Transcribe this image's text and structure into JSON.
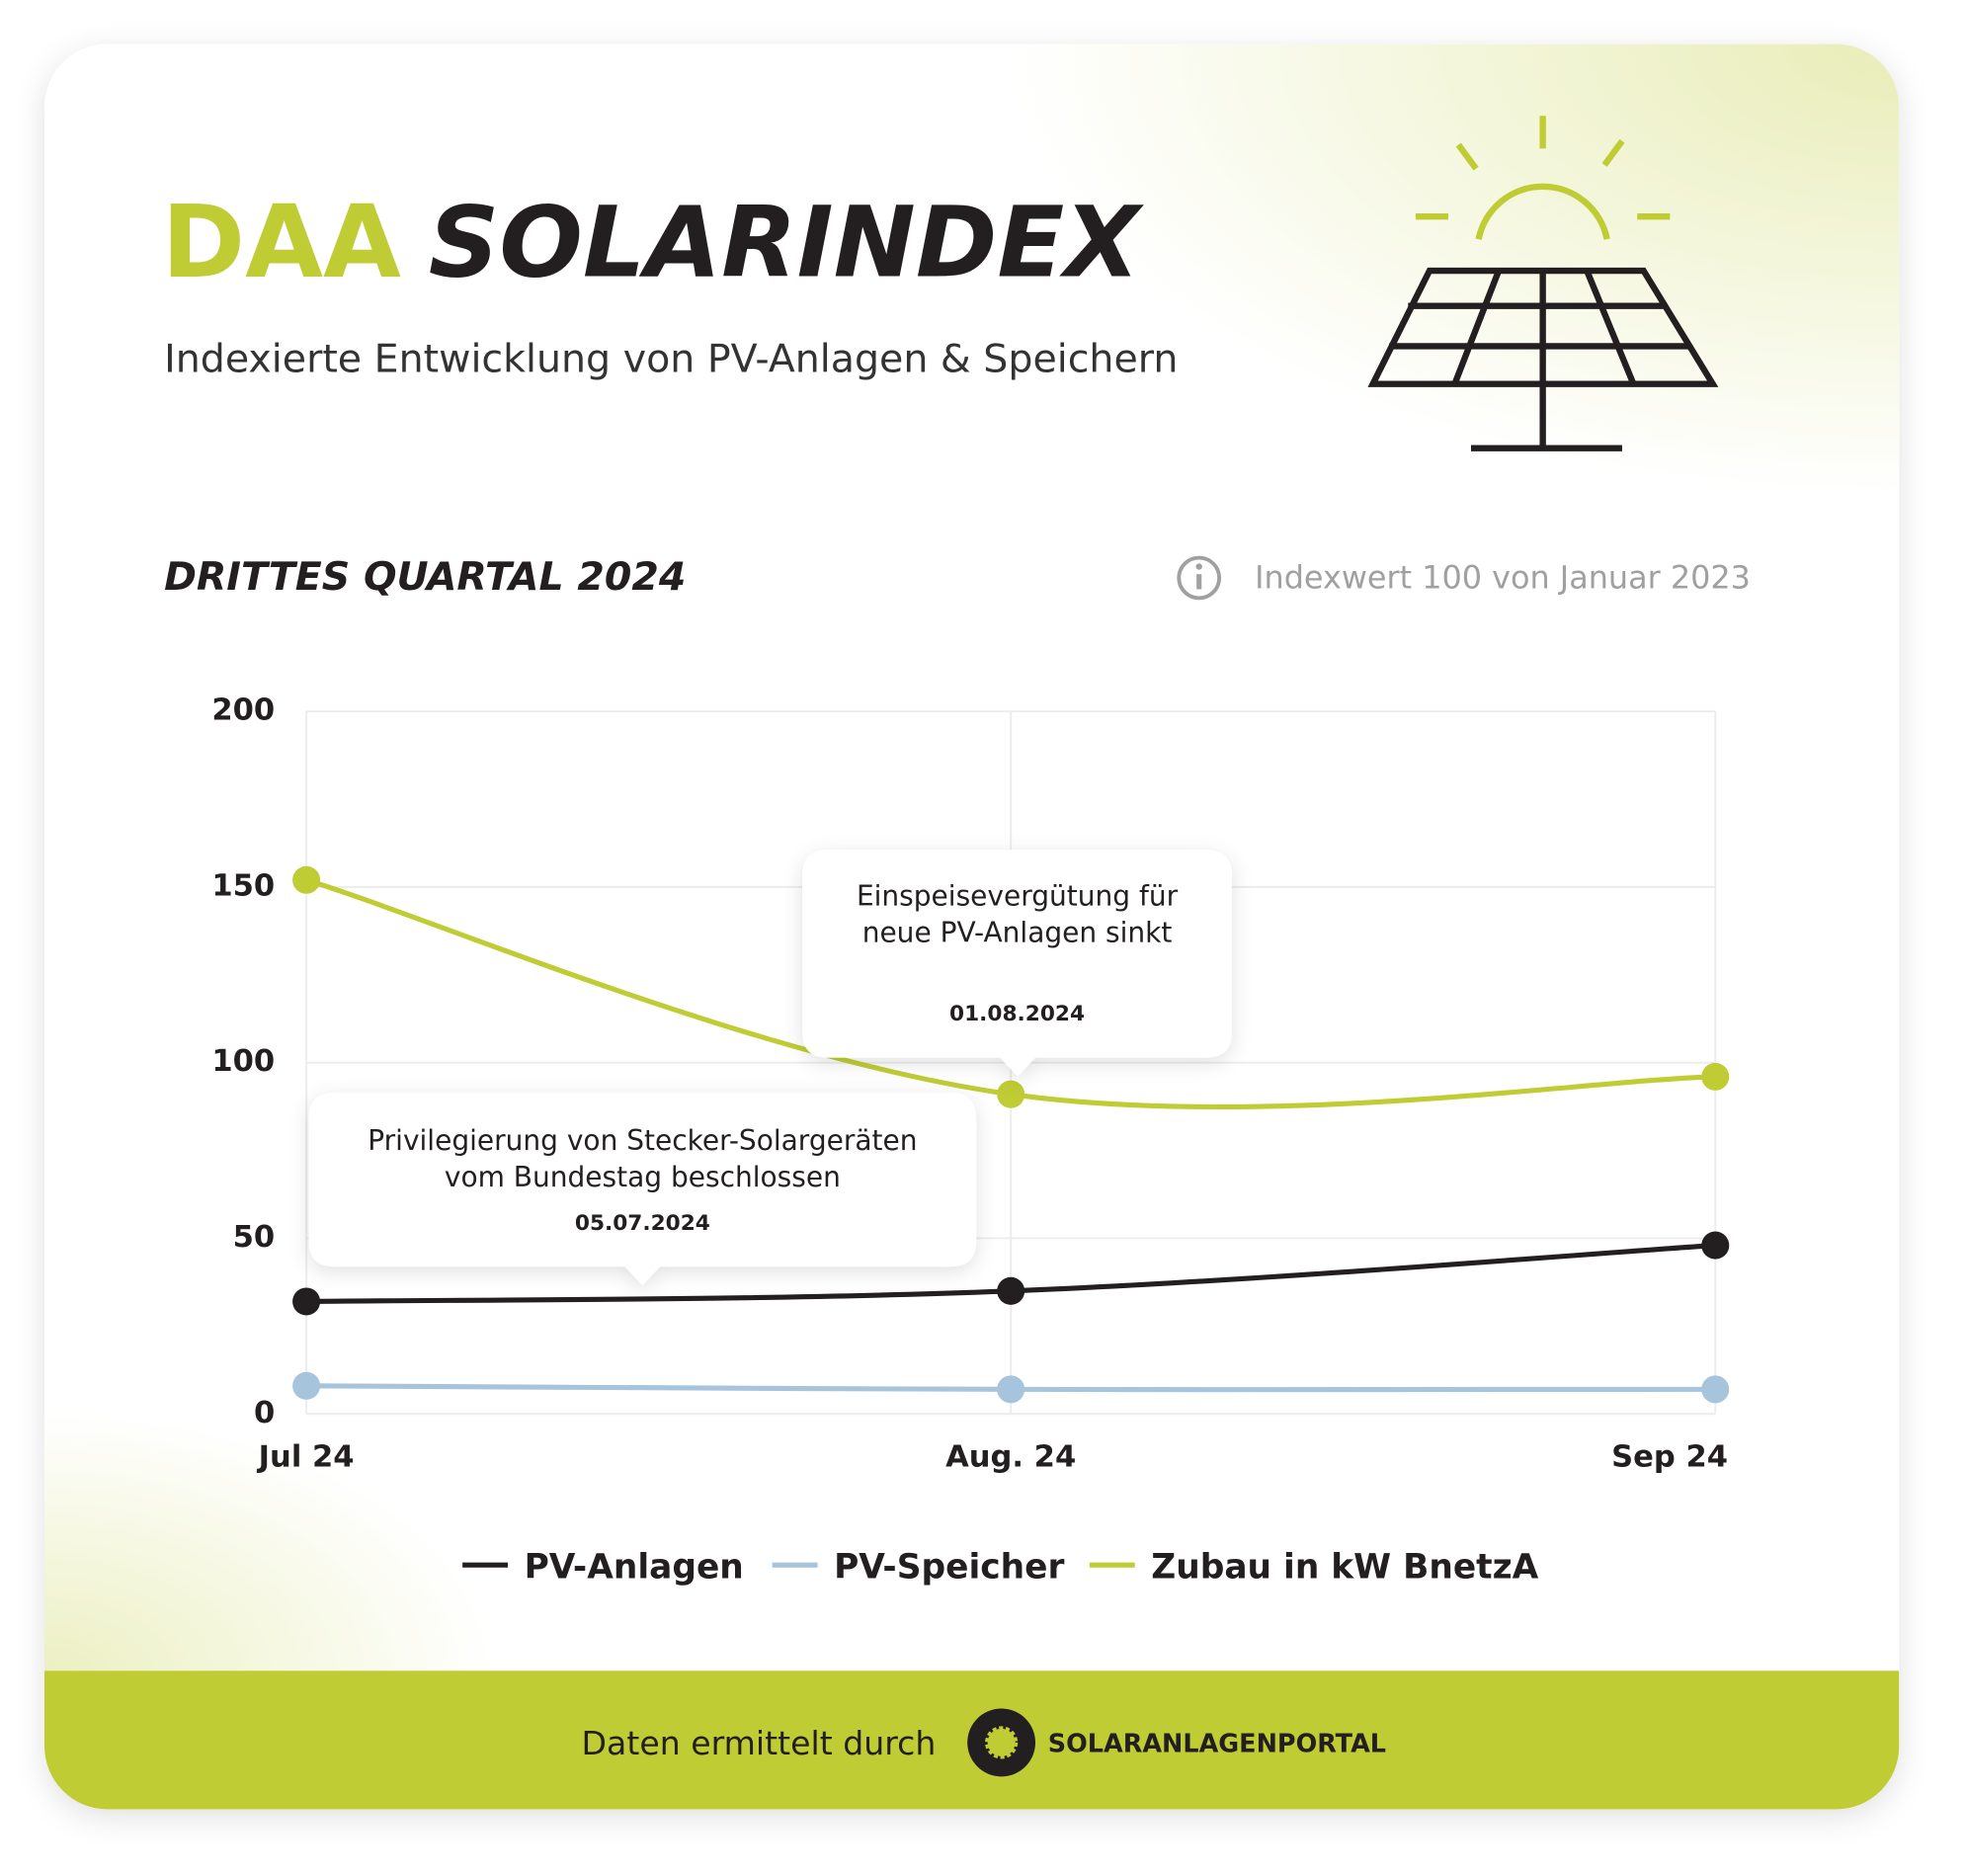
{
  "header": {
    "logo": "DAA",
    "title": "SOLARINDEX",
    "subtitle": "Indexierte Entwicklung von PV-Anlagen & Speichern"
  },
  "chart_data": {
    "type": "line",
    "title": "DRITTES QUARTAL 2024",
    "note": "Indexwert 100 von Januar 2023",
    "categories": [
      "Jul 24",
      "Aug. 24",
      "Sep 24"
    ],
    "series": [
      {
        "name": "PV-Anlagen",
        "color": "#231f20",
        "values": [
          32,
          35,
          48
        ]
      },
      {
        "name": "PV-Speicher",
        "color": "#a6c4dc",
        "values": [
          8,
          7,
          7
        ]
      },
      {
        "name": "Zubau in kW BnetzA",
        "color": "#bfcc34",
        "values": [
          152,
          91,
          96
        ]
      }
    ],
    "ylim": [
      0,
      200
    ],
    "yticks": [
      0,
      50,
      100,
      150,
      200
    ],
    "grid": true,
    "annotations": [
      {
        "lines": [
          "Einspeisevergütung für",
          "neue PV-Anlagen sinkt"
        ],
        "date": "01.08.2024"
      },
      {
        "lines": [
          "Privilegierung von Stecker-Solargeräten",
          "vom Bundestag beschlossen"
        ],
        "date": "05.07.2024"
      }
    ]
  },
  "footer": {
    "text": "Daten ermittelt durch",
    "brand": "SOLARANLAGENPORTAL"
  }
}
